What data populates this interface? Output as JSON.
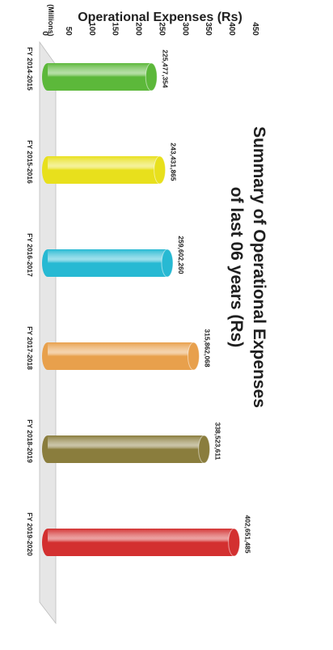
{
  "chart_data": {
    "type": "bar",
    "title_line1": "Summary of Operational Expenses",
    "title_line2": "of last 06 years (Rs)",
    "ylabel": "Operational Expenses (Rs)",
    "y_unit": "(Millions)",
    "xlabel": "",
    "ylim": [
      0,
      450
    ],
    "yticks": [
      0,
      50,
      100,
      150,
      200,
      250,
      300,
      350,
      400,
      450
    ],
    "categories": [
      "FY 2014-2015",
      "FY 2015-2016",
      "FY 2016-2017",
      "FY 2017-2018",
      "FY 2018-2019",
      "FY 2019-2020"
    ],
    "values": [
      225.477354,
      243.431865,
      259.60226,
      315.862068,
      338.523611,
      402.651485
    ],
    "value_labels": [
      "225,477,354",
      "243,431,865",
      "259,602,260",
      "315,862,068",
      "338,523,611",
      "402,651,485"
    ],
    "colors": [
      "#5cb83a",
      "#e8e01c",
      "#27b9d3",
      "#e8a04c",
      "#8a7d3d",
      "#d33030"
    ],
    "grid": false,
    "orientation": "rotated 90 degrees clockwise"
  }
}
